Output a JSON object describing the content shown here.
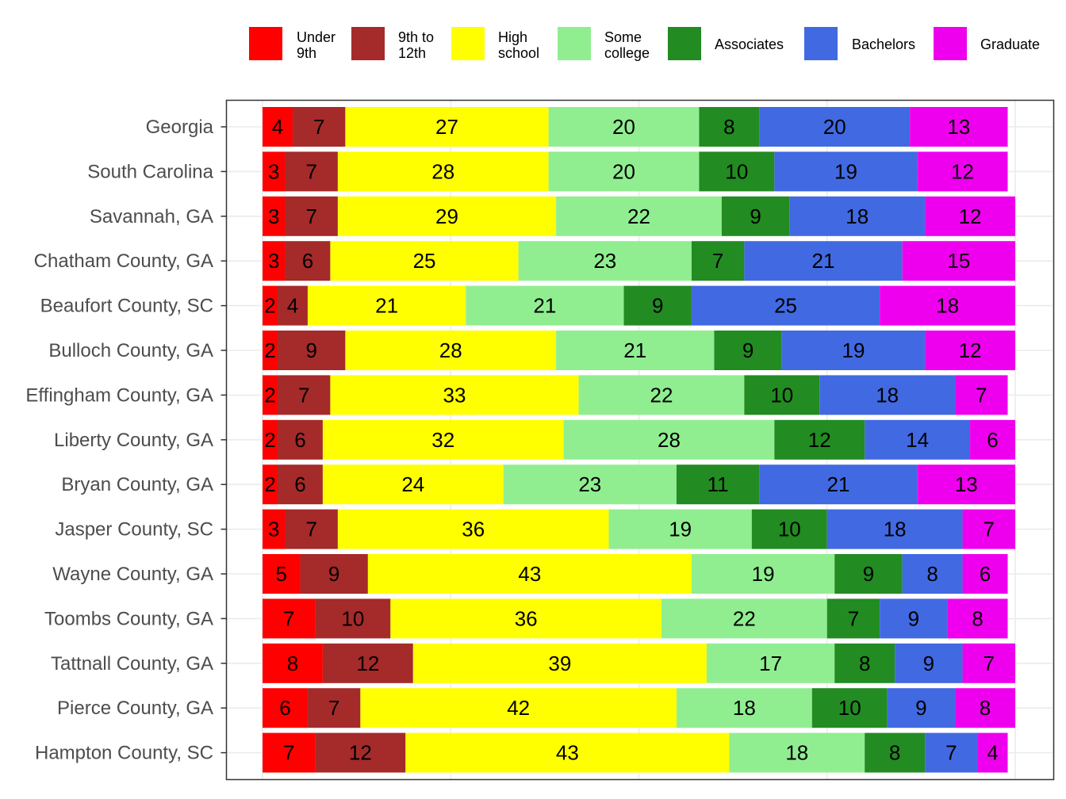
{
  "chart_data": {
    "type": "bar",
    "orientation": "horizontal",
    "stacked": true,
    "normalized_to_100": true,
    "title": "",
    "xlabel": "",
    "ylabel": "",
    "xlim": [
      0,
      100
    ],
    "grid": true,
    "legend_position": "top",
    "categories": [
      "Georgia",
      "South Carolina",
      "Savannah, GA",
      "Chatham County, GA",
      "Beaufort County, SC",
      "Bulloch County, GA",
      "Effingham County, GA",
      "Liberty County, GA",
      "Bryan County, GA",
      "Jasper County, SC",
      "Wayne County, GA",
      "Toombs County, GA",
      "Tattnall County, GA",
      "Pierce County, GA",
      "Hampton County, SC"
    ],
    "series": [
      {
        "name": "Under 9th",
        "legend_lines": [
          "Under",
          "9th"
        ],
        "color": "#FF0000",
        "values": [
          4,
          3,
          3,
          3,
          2,
          2,
          2,
          2,
          2,
          3,
          5,
          7,
          8,
          6,
          7
        ]
      },
      {
        "name": "9th to 12th",
        "legend_lines": [
          "9th to",
          "12th"
        ],
        "color": "#A52A2A",
        "values": [
          7,
          7,
          7,
          6,
          4,
          9,
          7,
          6,
          6,
          7,
          9,
          10,
          12,
          7,
          12
        ]
      },
      {
        "name": "High school",
        "legend_lines": [
          "High",
          "school"
        ],
        "color": "#FFFF00",
        "values": [
          27,
          28,
          29,
          25,
          21,
          28,
          33,
          32,
          24,
          36,
          43,
          36,
          39,
          42,
          43
        ]
      },
      {
        "name": "Some college",
        "legend_lines": [
          "Some",
          "college"
        ],
        "color": "#90EE90",
        "values": [
          20,
          20,
          22,
          23,
          21,
          21,
          22,
          28,
          23,
          19,
          19,
          22,
          17,
          18,
          18
        ]
      },
      {
        "name": "Associates",
        "legend_lines": [
          "Associates"
        ],
        "color": "#228B22",
        "values": [
          8,
          10,
          9,
          7,
          9,
          9,
          10,
          12,
          11,
          10,
          9,
          7,
          8,
          10,
          8
        ]
      },
      {
        "name": "Bachelors",
        "legend_lines": [
          "Bachelors"
        ],
        "color": "#4169E1",
        "values": [
          20,
          19,
          18,
          21,
          25,
          19,
          18,
          14,
          21,
          18,
          8,
          9,
          9,
          9,
          7
        ]
      },
      {
        "name": "Graduate",
        "legend_lines": [
          "Graduate"
        ],
        "color": "#EE00EE",
        "values": [
          13,
          12,
          12,
          15,
          18,
          12,
          7,
          6,
          13,
          7,
          6,
          8,
          7,
          8,
          4
        ]
      }
    ]
  }
}
